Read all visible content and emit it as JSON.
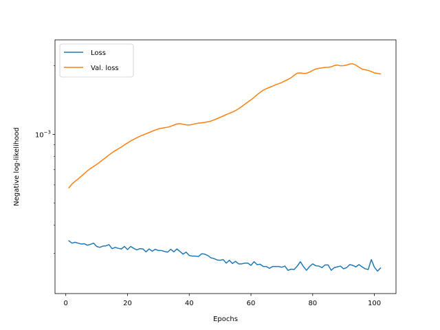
{
  "chart_data": {
    "type": "line",
    "xlabel": "Epochs",
    "ylabel": "Negative log-likelihood",
    "yscale": "log",
    "xlim": [
      -3.5,
      107
    ],
    "ylim": [
      0.0002,
      0.0026
    ],
    "x_ticks": [
      0,
      20,
      40,
      60,
      80,
      100
    ],
    "x_tick_labels": [
      "0",
      "20",
      "40",
      "60",
      "80",
      "100"
    ],
    "y_ticks": [
      0.001
    ],
    "y_tick_labels": {
      "base": "10",
      "exp": "−3"
    },
    "grid": false,
    "legend": {
      "position": "upper-left",
      "entries": [
        "Loss",
        "Val. loss"
      ]
    },
    "colors": {
      "loss": "#1f77b4",
      "val_loss": "#ff7f0e"
    },
    "x": [
      1,
      2,
      3,
      4,
      5,
      6,
      7,
      8,
      9,
      10,
      11,
      12,
      13,
      14,
      15,
      16,
      17,
      18,
      19,
      20,
      21,
      22,
      23,
      24,
      25,
      26,
      27,
      28,
      29,
      30,
      31,
      32,
      33,
      34,
      35,
      36,
      37,
      38,
      39,
      40,
      41,
      42,
      43,
      44,
      45,
      46,
      47,
      48,
      49,
      50,
      51,
      52,
      53,
      54,
      55,
      56,
      57,
      58,
      59,
      60,
      61,
      62,
      63,
      64,
      65,
      66,
      67,
      68,
      69,
      70,
      71,
      72,
      73,
      74,
      75,
      76,
      77,
      78,
      79,
      80,
      81,
      82,
      83,
      84,
      85,
      86,
      87,
      88,
      89,
      90,
      91,
      92,
      93,
      94,
      95,
      96,
      97,
      98,
      99,
      100,
      101,
      102
    ],
    "series": [
      {
        "name": "Loss",
        "values": [
          0.000341,
          0.000333,
          0.000336,
          0.000333,
          0.00033,
          0.000331,
          0.000326,
          0.000329,
          0.000333,
          0.000322,
          0.000319,
          0.000323,
          0.000324,
          0.000328,
          0.000315,
          0.000319,
          0.000316,
          0.000314,
          0.000322,
          0.000312,
          0.000322,
          0.000316,
          0.000311,
          0.000315,
          0.000314,
          0.000305,
          0.000314,
          0.000307,
          0.000313,
          0.000309,
          0.000309,
          0.000306,
          0.000304,
          0.000313,
          0.000305,
          0.000314,
          0.000306,
          0.000298,
          0.000304,
          0.000294,
          0.000292,
          0.000292,
          0.000291,
          0.000299,
          0.000298,
          0.000294,
          0.000287,
          0.000285,
          0.000281,
          0.00028,
          0.000282,
          0.000272,
          0.00028,
          0.000271,
          0.000277,
          0.00027,
          0.00027,
          0.000272,
          0.000272,
          0.000266,
          0.000276,
          0.000268,
          0.000269,
          0.000263,
          0.000263,
          0.000258,
          0.000263,
          0.000263,
          0.000263,
          0.000261,
          0.000264,
          0.000253,
          0.000256,
          0.000255,
          0.000264,
          0.000276,
          0.000263,
          0.000253,
          0.000263,
          0.00027,
          0.000265,
          0.000264,
          0.00026,
          0.000267,
          0.000267,
          0.000253,
          0.00026,
          0.000262,
          0.000264,
          0.000257,
          0.00026,
          0.000268,
          0.000266,
          0.000262,
          0.000268,
          0.000262,
          0.000257,
          0.000255,
          0.000282,
          0.000261,
          0.000251,
          0.000259
        ]
      },
      {
        "name": "Val. loss",
        "values": [
          0.000582,
          0.000606,
          0.000622,
          0.000637,
          0.000655,
          0.000673,
          0.000692,
          0.000708,
          0.000723,
          0.000738,
          0.000755,
          0.000774,
          0.000792,
          0.000812,
          0.000831,
          0.000848,
          0.000864,
          0.00088,
          0.000899,
          0.000917,
          0.000935,
          0.000951,
          0.000966,
          0.000981,
          0.000994,
          0.001006,
          0.001019,
          0.001032,
          0.001045,
          0.001057,
          0.001064,
          0.00107,
          0.001075,
          0.001085,
          0.001098,
          0.001111,
          0.001115,
          0.001108,
          0.001101,
          0.001099,
          0.001106,
          0.001114,
          0.00112,
          0.001124,
          0.001129,
          0.001135,
          0.001144,
          0.001157,
          0.001172,
          0.001188,
          0.001204,
          0.001221,
          0.001238,
          0.001253,
          0.001272,
          0.001296,
          0.001325,
          0.001356,
          0.001387,
          0.001418,
          0.001453,
          0.001494,
          0.00153,
          0.001564,
          0.001588,
          0.001609,
          0.001629,
          0.001652,
          0.00167,
          0.001691,
          0.001717,
          0.001742,
          0.001775,
          0.001818,
          0.001857,
          0.001862,
          0.001852,
          0.001855,
          0.001877,
          0.001909,
          0.001937,
          0.00195,
          0.001958,
          0.001969,
          0.00197,
          0.00198,
          0.002005,
          0.002015,
          0.002001,
          0.002003,
          0.002016,
          0.002037,
          0.002042,
          0.002014,
          0.001972,
          0.001935,
          0.001921,
          0.001909,
          0.001888,
          0.001862,
          0.001852,
          0.001842
        ]
      }
    ]
  }
}
